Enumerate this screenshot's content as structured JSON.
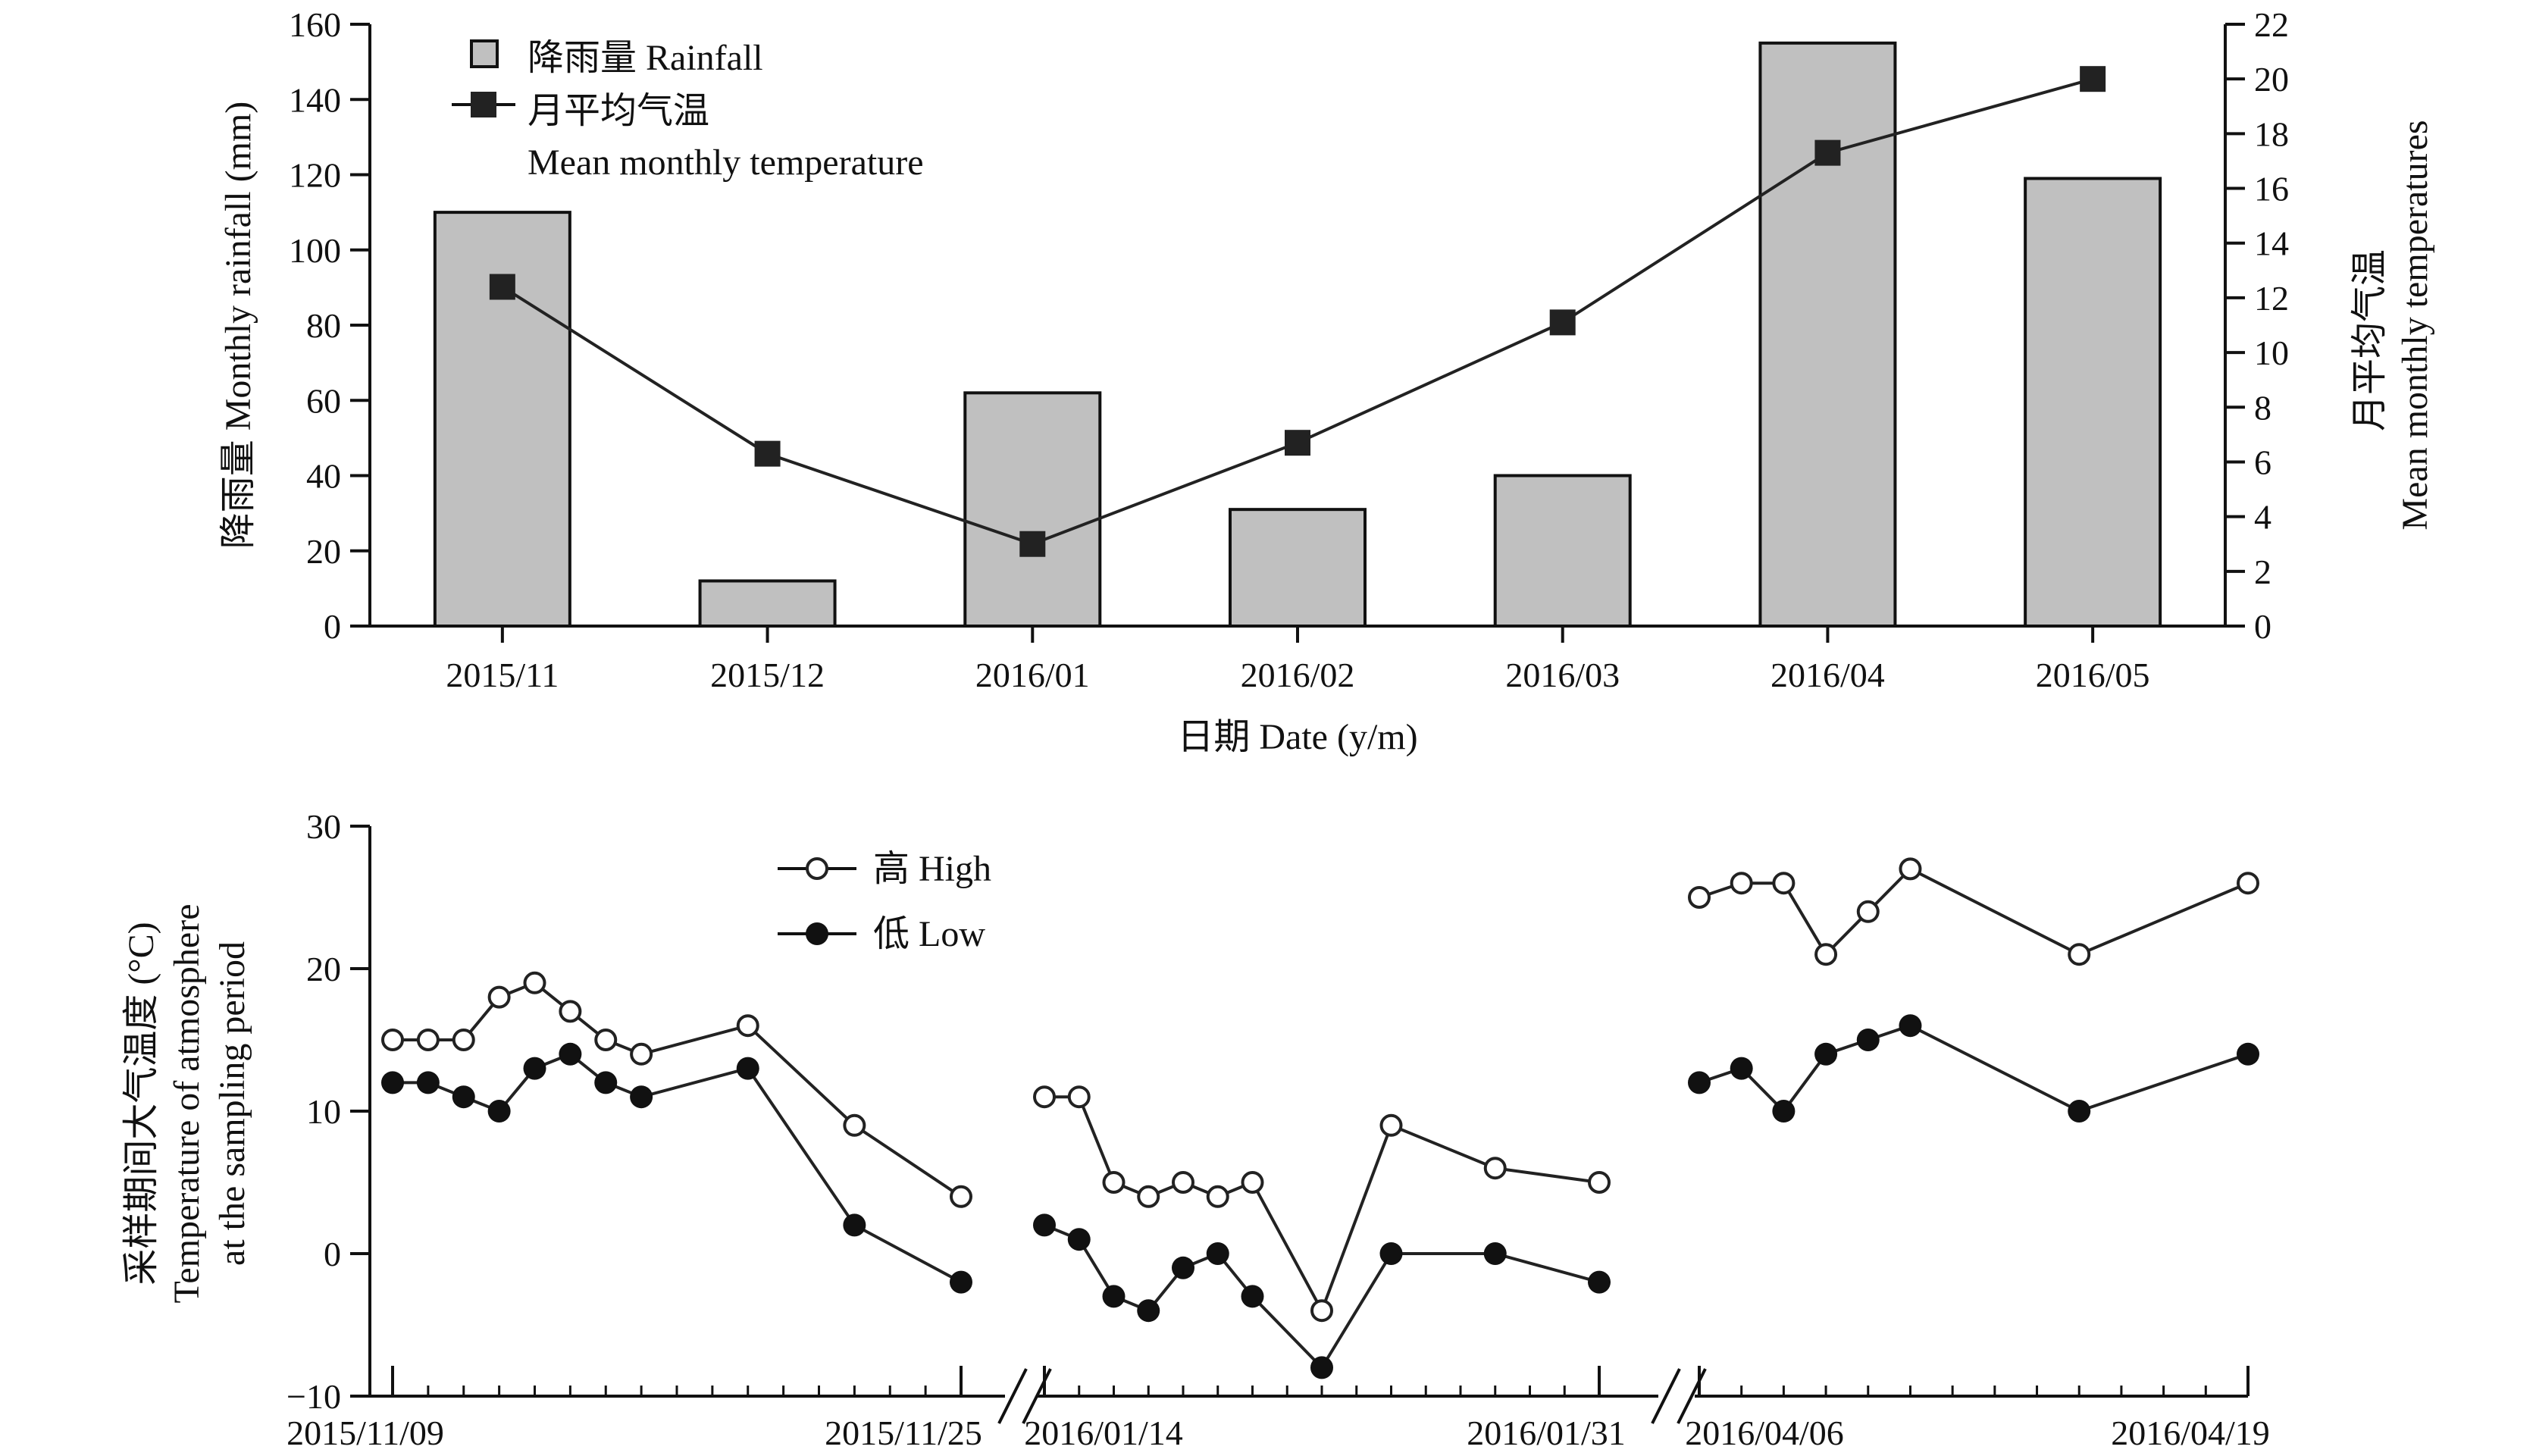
{
  "chart_data": [
    {
      "type": "bar",
      "categories": [
        "2015/11",
        "2015/12",
        "2016/01",
        "2016/02",
        "2016/03",
        "2016/04",
        "2016/05"
      ],
      "xlabel": "日期 Date (y/m)",
      "ylabel": "降雨量 Monthly rainfall (mm)",
      "y2label": [
        "月平均气温",
        "Mean monthly temperatures"
      ],
      "ylim": [
        0,
        160
      ],
      "y2lim": [
        0,
        22
      ],
      "yticks": [
        "0",
        "20",
        "40",
        "60",
        "80",
        "100",
        "120",
        "140",
        "160"
      ],
      "y2ticks": [
        "0",
        "2",
        "4",
        "6",
        "8",
        "10",
        "12",
        "14",
        "16",
        "18",
        "20",
        "22"
      ],
      "series": [
        {
          "name": "降雨量 Rainfall",
          "kind": "bar",
          "axis": "left",
          "color": "#c0c0c0",
          "values": [
            110,
            12,
            62,
            31,
            40,
            155,
            119
          ]
        },
        {
          "name": "月平均气温",
          "name2": "Mean monthly temperature",
          "kind": "line",
          "axis": "right",
          "color": "#222222",
          "values": [
            12.4,
            6.3,
            3.0,
            6.7,
            11.1,
            17.3,
            20.0
          ]
        }
      ],
      "legend_position": "top-left",
      "grid": false
    },
    {
      "type": "line",
      "ylabel": [
        "采样期间大气温度 (°C)",
        "Temperature of atmosphere",
        "at the sampling period"
      ],
      "ylim": [
        -10,
        30
      ],
      "yticks": [
        "−10",
        "0",
        "10",
        "20",
        "30"
      ],
      "x_tick_labels": [
        "2015/11/09",
        "2015/11/25",
        "2016/01/14",
        "2016/01/31",
        "2016/04/06",
        "2016/04/19"
      ],
      "x_axis": "broken into three date segments",
      "segments": [
        {
          "start": "2015/11/09",
          "end": "2015/11/25",
          "high": [
            [
              0,
              15
            ],
            [
              1,
              15
            ],
            [
              2,
              15
            ],
            [
              3,
              18
            ],
            [
              4,
              19
            ],
            [
              5,
              17
            ],
            [
              6,
              15
            ],
            [
              7,
              14
            ],
            [
              10,
              16
            ],
            [
              13,
              9
            ],
            [
              16,
              4
            ]
          ],
          "low": [
            [
              0,
              12
            ],
            [
              1,
              12
            ],
            [
              2,
              11
            ],
            [
              3,
              10
            ],
            [
              4,
              13
            ],
            [
              5,
              14
            ],
            [
              6,
              12
            ],
            [
              7,
              11
            ],
            [
              10,
              13
            ],
            [
              13,
              2
            ],
            [
              16,
              -2
            ]
          ]
        },
        {
          "start": "2016/01/14",
          "end": "2016/01/31",
          "high": [
            [
              0,
              11
            ],
            [
              1,
              11
            ],
            [
              2,
              5
            ],
            [
              3,
              4
            ],
            [
              4,
              5
            ],
            [
              5,
              4
            ],
            [
              6,
              5
            ],
            [
              8,
              -4
            ],
            [
              10,
              9
            ],
            [
              13,
              6
            ],
            [
              16,
              5
            ]
          ],
          "low": [
            [
              0,
              2
            ],
            [
              1,
              1
            ],
            [
              2,
              -3
            ],
            [
              3,
              -4
            ],
            [
              4,
              -1
            ],
            [
              5,
              0
            ],
            [
              6,
              -3
            ],
            [
              8,
              -8
            ],
            [
              10,
              0
            ],
            [
              13,
              0
            ],
            [
              16,
              -2
            ]
          ]
        },
        {
          "start": "2016/04/06",
          "end": "2016/04/19",
          "high": [
            [
              0,
              25
            ],
            [
              1,
              26
            ],
            [
              2,
              26
            ],
            [
              3,
              21
            ],
            [
              4,
              24
            ],
            [
              5,
              27
            ],
            [
              9,
              21
            ],
            [
              13,
              26
            ]
          ],
          "low": [
            [
              0,
              12
            ],
            [
              1,
              13
            ],
            [
              2,
              10
            ],
            [
              3,
              14
            ],
            [
              4,
              15
            ],
            [
              5,
              16
            ],
            [
              9,
              10
            ],
            [
              13,
              14
            ]
          ]
        }
      ],
      "series": [
        {
          "name": "高 High",
          "marker": "open-circle",
          "color": "#222222"
        },
        {
          "name": "低 Low",
          "marker": "filled-circle",
          "color": "#222222"
        }
      ],
      "legend_position": "top-left",
      "grid": false
    }
  ]
}
